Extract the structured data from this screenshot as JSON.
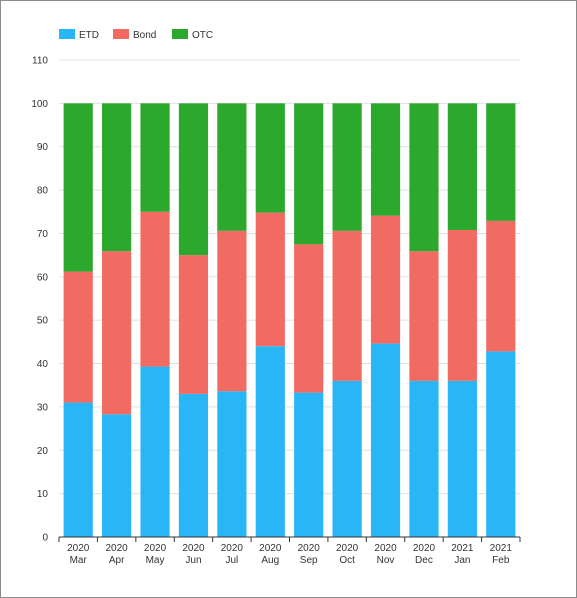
{
  "chart_data": {
    "type": "bar",
    "stacked": true,
    "categories": [
      [
        "2020",
        "Mar"
      ],
      [
        "2020",
        "Apr"
      ],
      [
        "2020",
        "May"
      ],
      [
        "2020",
        "Jun"
      ],
      [
        "2020",
        "Jul"
      ],
      [
        "2020",
        "Aug"
      ],
      [
        "2020",
        "Sep"
      ],
      [
        "2020",
        "Oct"
      ],
      [
        "2020",
        "Nov"
      ],
      [
        "2020",
        "Dec"
      ],
      [
        "2021",
        "Jan"
      ],
      [
        "2021",
        "Feb"
      ]
    ],
    "series": [
      {
        "name": "ETD",
        "color": "#29b6f6",
        "values": [
          31,
          28.3,
          39.3,
          33,
          33.6,
          44,
          33.3,
          36,
          44.6,
          36,
          36,
          42.8
        ]
      },
      {
        "name": "Bond",
        "color": "#f26b63",
        "values": [
          30.2,
          37.6,
          35.7,
          32,
          37,
          30.8,
          34.2,
          34.6,
          29.5,
          29.9,
          34.8,
          30.1
        ]
      },
      {
        "name": "OTC",
        "color": "#2ca82c",
        "values": [
          38.8,
          34.1,
          25,
          35,
          29.4,
          25.2,
          32.5,
          29.4,
          25.9,
          34.1,
          29.2,
          27.1
        ]
      }
    ],
    "yticks": [
      0,
      10,
      20,
      30,
      40,
      50,
      60,
      70,
      80,
      90,
      100,
      110
    ],
    "ylim": [
      0,
      110
    ],
    "legend_position": "top-left",
    "grid": true
  }
}
